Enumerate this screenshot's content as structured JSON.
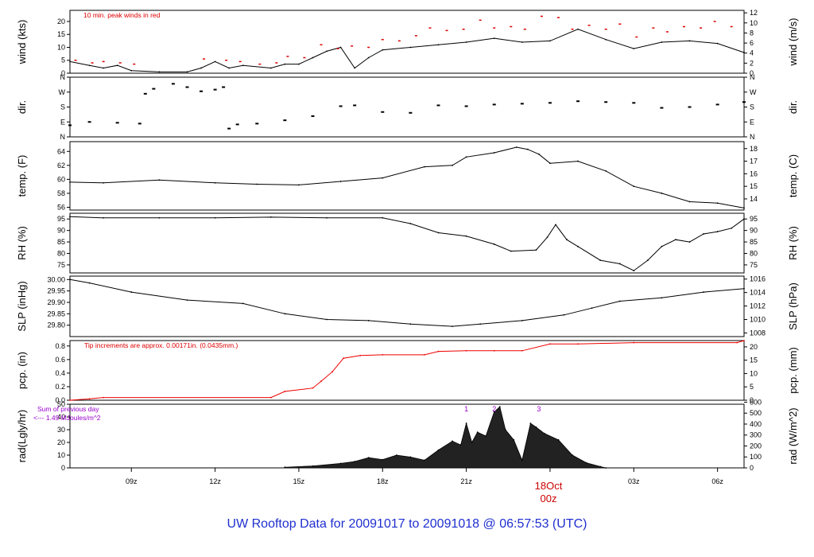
{
  "title": "UW Rooftop Data for 20091017  to  20091018 @ 06:57:53  (UTC)",
  "date_marker": {
    "day": "18Oct",
    "time": "00z"
  },
  "time_axis": {
    "start_hour": 6.8,
    "end_hour": 30.95,
    "tick_hours": [
      9,
      12,
      15,
      18,
      21,
      27,
      30
    ],
    "tick_labels": [
      "09z",
      "12z",
      "15z",
      "18z",
      "21z",
      "03z",
      "06z"
    ],
    "midnight_hour": 24
  },
  "colors": {
    "series": "#000000",
    "peak": "#dd0000",
    "precip": "#ee0000",
    "annotation": "#9900cc",
    "title": "#1f2fd0",
    "date": "#cc0000"
  },
  "chart_data": [
    {
      "id": "wind",
      "type": "line",
      "left_label": "wind (kts)",
      "right_label": "wind (m/s)",
      "ylim": [
        0,
        24.3
      ],
      "left_ticks": [
        0,
        5,
        10,
        15,
        20
      ],
      "right_ticks": [
        0,
        2,
        4,
        6,
        8,
        10,
        12
      ],
      "right_ticks_value": [
        0,
        3.89,
        7.78,
        11.66,
        15.55,
        19.44,
        23.33
      ],
      "annotation": "10 min. peak winds in red",
      "x": [
        6.8,
        7.5,
        8.0,
        8.5,
        9.0,
        10.0,
        11.0,
        11.5,
        12.0,
        12.5,
        13.0,
        14.0,
        14.5,
        15.0,
        15.5,
        16.0,
        16.5,
        17.0,
        17.5,
        18.0,
        19.0,
        20.0,
        21.0,
        22.0,
        23.0,
        24.0,
        25.0,
        26.0,
        27.0,
        28.0,
        29.0,
        30.0,
        30.95
      ],
      "values": [
        4.5,
        3.0,
        2.0,
        3.0,
        1.0,
        0.5,
        0.5,
        2.0,
        4.5,
        2.0,
        3.0,
        2.0,
        3.5,
        3.5,
        6.0,
        8.5,
        10.0,
        2.0,
        6.0,
        9.0,
        10.0,
        11.0,
        12.0,
        13.5,
        12.0,
        12.5,
        17.0,
        13.0,
        9.5,
        12.0,
        12.5,
        11.5,
        8.0
      ],
      "peak_x": [
        7.0,
        7.6,
        8.0,
        8.6,
        9.1,
        11.6,
        12.4,
        12.9,
        13.6,
        14.2,
        14.6,
        15.2,
        15.8,
        16.4,
        16.9,
        17.5,
        18.0,
        18.6,
        19.2,
        19.7,
        20.3,
        20.9,
        21.5,
        22.0,
        22.6,
        23.1,
        23.7,
        24.3,
        24.8,
        25.4,
        26.0,
        26.5,
        27.1,
        27.7,
        28.2,
        28.8,
        29.4,
        29.9,
        30.5
      ],
      "peak_values": [
        5.0,
        4.0,
        4.5,
        4.0,
        3.5,
        5.5,
        5.0,
        4.5,
        3.5,
        4.0,
        6.5,
        6.0,
        11.0,
        9.5,
        10.5,
        10.0,
        13.0,
        12.5,
        14.5,
        17.5,
        16.5,
        17.0,
        20.5,
        17.5,
        18.0,
        17.0,
        22.0,
        21.5,
        17.0,
        18.5,
        17.0,
        19.0,
        14.0,
        17.5,
        16.0,
        18.0,
        17.5,
        20.0,
        18.0
      ]
    },
    {
      "id": "direction",
      "type": "scatter",
      "left_label": "dir.",
      "right_label": "dir.",
      "ylim": [
        0,
        360
      ],
      "left_ticks": [
        "N",
        "E",
        "S",
        "W",
        "N"
      ],
      "left_ticks_value": [
        0,
        90,
        180,
        270,
        360
      ],
      "right_ticks": [
        "N",
        "E",
        "S",
        "W",
        "N"
      ],
      "x": [
        6.8,
        7.5,
        8.5,
        9.3,
        9.5,
        9.8,
        10.5,
        11.0,
        11.5,
        12.0,
        12.3,
        12.5,
        12.8,
        13.5,
        14.5,
        15.5,
        16.5,
        17.0,
        18.0,
        19.0,
        20.0,
        21.0,
        22.0,
        23.0,
        24.0,
        25.0,
        26.0,
        27.0,
        28.0,
        29.0,
        30.0,
        30.95
      ],
      "values": [
        70,
        90,
        85,
        80,
        260,
        290,
        320,
        300,
        275,
        285,
        300,
        50,
        75,
        80,
        100,
        125,
        185,
        190,
        150,
        145,
        190,
        185,
        195,
        200,
        205,
        215,
        210,
        205,
        175,
        180,
        195,
        210
      ]
    },
    {
      "id": "temperature",
      "type": "line",
      "left_label": "temp. (F)",
      "right_label": "temp. (C)",
      "ylim": [
        55.6,
        65.4
      ],
      "left_ticks": [
        56,
        58,
        60,
        62,
        64
      ],
      "right_ticks": [
        14,
        15,
        16,
        17,
        18
      ],
      "right_ticks_value": [
        57.2,
        59.0,
        60.8,
        62.6,
        64.4
      ],
      "x": [
        6.8,
        8.0,
        10.0,
        12.0,
        13.5,
        15.0,
        16.5,
        18.0,
        19.5,
        20.5,
        21.0,
        22.0,
        22.8,
        23.2,
        23.6,
        24.0,
        25.0,
        26.0,
        27.0,
        28.0,
        29.0,
        30.0,
        30.95
      ],
      "values": [
        59.6,
        59.5,
        59.9,
        59.5,
        59.3,
        59.2,
        59.7,
        60.2,
        61.8,
        62.0,
        63.2,
        63.8,
        64.6,
        64.3,
        63.6,
        62.3,
        62.6,
        61.2,
        59.0,
        58.0,
        56.8,
        56.6,
        55.9
      ]
    },
    {
      "id": "humidity",
      "type": "line",
      "left_label": "RH (%)",
      "right_label": "RH (%)",
      "ylim": [
        71.5,
        97.5
      ],
      "left_ticks": [
        75,
        80,
        85,
        90,
        95
      ],
      "right_ticks": [
        75,
        80,
        85,
        90,
        95
      ],
      "x": [
        6.8,
        8.0,
        10.0,
        12.0,
        14.0,
        16.0,
        18.0,
        19.0,
        20.0,
        21.0,
        22.0,
        22.6,
        23.5,
        23.9,
        24.2,
        24.6,
        25.0,
        25.8,
        26.5,
        27.0,
        27.5,
        28.0,
        28.5,
        29.0,
        29.5,
        30.0,
        30.5,
        30.95
      ],
      "values": [
        96,
        95.5,
        95.5,
        95.5,
        95.8,
        95.5,
        95.5,
        93.0,
        89.0,
        87.5,
        84.0,
        81.0,
        81.5,
        87.0,
        92.5,
        86.0,
        83.0,
        77.0,
        75.5,
        72.5,
        77.0,
        83.0,
        86.0,
        85.0,
        88.5,
        89.5,
        91.0,
        95.0
      ]
    },
    {
      "id": "pressure",
      "type": "line",
      "left_label": "SLP (inHg)",
      "right_label": "SLP (hPa)",
      "ylim": [
        29.75,
        30.015
      ],
      "left_ticks": [
        29.8,
        29.85,
        29.9,
        29.95,
        30.0
      ],
      "left_tick_labels": [
        "29.80",
        "29.85",
        "29.90",
        "29.95",
        "30.00"
      ],
      "right_ticks": [
        1008,
        1010,
        1012,
        1014,
        1016
      ],
      "right_ticks_value": [
        29.766,
        29.825,
        29.884,
        29.943,
        30.002
      ],
      "x": [
        6.8,
        7.5,
        9.0,
        11.0,
        13.0,
        14.5,
        16.0,
        17.5,
        19.0,
        20.5,
        21.5,
        23.0,
        24.5,
        25.5,
        26.5,
        28.0,
        29.5,
        30.95
      ],
      "values": [
        30.0,
        29.985,
        29.945,
        29.91,
        29.895,
        29.85,
        29.825,
        29.82,
        29.805,
        29.795,
        29.805,
        29.82,
        29.845,
        29.875,
        29.905,
        29.92,
        29.945,
        29.96
      ]
    },
    {
      "id": "precipitation",
      "type": "line",
      "left_label": "pcp. (in)",
      "right_label": "pcp. (mm)",
      "ylim": [
        0,
        0.88
      ],
      "left_ticks": [
        0.0,
        0.2,
        0.4,
        0.6,
        0.8
      ],
      "left_tick_labels": [
        "0.0",
        "0.2",
        "0.4",
        "0.6",
        "0.8"
      ],
      "right_ticks": [
        0,
        5,
        10,
        15,
        20
      ],
      "right_ticks_value": [
        0,
        0.197,
        0.394,
        0.591,
        0.787
      ],
      "annotation": "Tip increments are approx. 0.00171in. (0.0435mm.)",
      "x": [
        6.8,
        7.5,
        8.0,
        14.0,
        14.5,
        15.5,
        15.8,
        16.2,
        16.6,
        17.2,
        18.0,
        19.5,
        20.0,
        21.0,
        22.0,
        23.0,
        24.0,
        25.0,
        27.0,
        30.7,
        30.95
      ],
      "values": [
        0.0,
        0.02,
        0.04,
        0.04,
        0.13,
        0.18,
        0.28,
        0.42,
        0.62,
        0.66,
        0.67,
        0.67,
        0.72,
        0.73,
        0.73,
        0.73,
        0.83,
        0.83,
        0.85,
        0.85,
        0.88
      ]
    },
    {
      "id": "radiation",
      "type": "area",
      "left_label": "rad(Lgly/hr)",
      "right_label": "rad (W/m^2)",
      "ylim": [
        0,
        50
      ],
      "left_ticks": [
        0,
        10,
        20,
        30,
        40,
        50
      ],
      "right_ticks": [
        0,
        100,
        200,
        300,
        400,
        500,
        600
      ],
      "right_ticks_value": [
        0,
        8.6,
        17.2,
        25.8,
        34.4,
        43.0,
        51.6
      ],
      "annotation_lines": [
        "Sum of previous day",
        "<--- 1.49 MJoules/m^2"
      ],
      "markers": [
        {
          "label": "1",
          "x": 21.0
        },
        {
          "label": "2",
          "x": 22.0
        },
        {
          "label": "3",
          "x": 23.6
        }
      ],
      "x": [
        14.5,
        15.5,
        16.5,
        17.0,
        17.5,
        18.0,
        18.5,
        19.0,
        19.5,
        20.0,
        20.5,
        20.8,
        21.0,
        21.2,
        21.4,
        21.7,
        22.0,
        22.2,
        22.4,
        22.7,
        23.0,
        23.3,
        23.5,
        23.8,
        24.3,
        24.8,
        25.3,
        25.8,
        26.0
      ],
      "values": [
        0.5,
        1.5,
        3.5,
        5.0,
        8.0,
        6.5,
        10.0,
        8.5,
        6.0,
        14.0,
        21.0,
        18.0,
        35.0,
        20.0,
        28.0,
        25.0,
        44.0,
        48.0,
        30.0,
        22.0,
        6.0,
        35.0,
        32.0,
        27.0,
        22.0,
        10.0,
        4.0,
        1.0,
        0.0
      ]
    }
  ]
}
